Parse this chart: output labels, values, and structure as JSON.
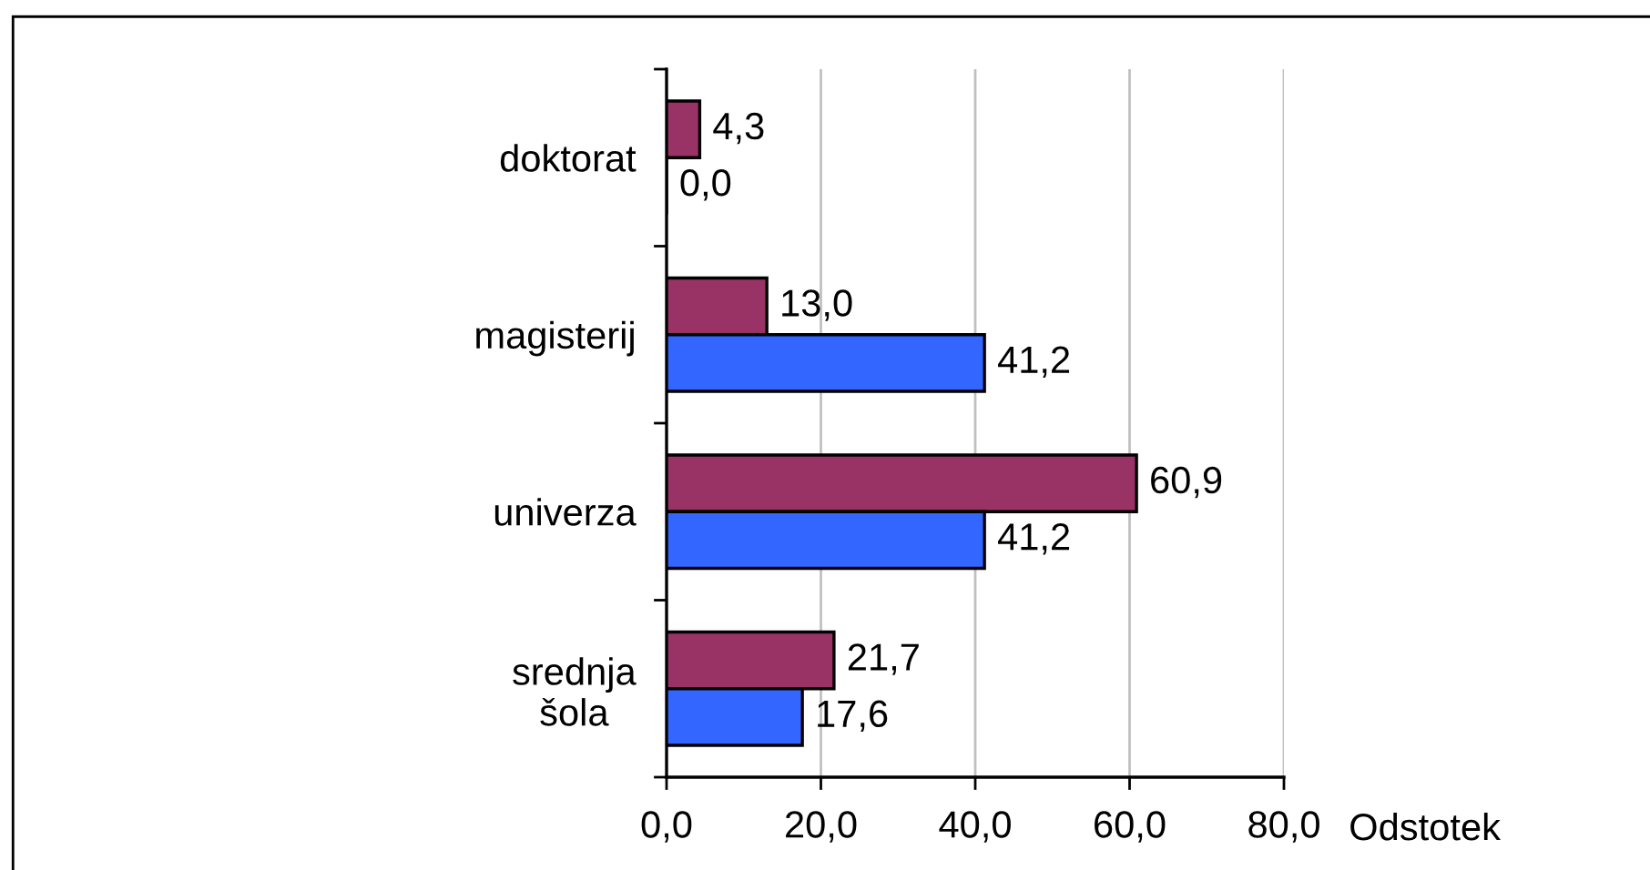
{
  "chart_data": {
    "type": "bar",
    "orientation": "horizontal",
    "categories": [
      "doktorat",
      "magisterij",
      "univerza",
      "srednja\nšola"
    ],
    "series": [
      {
        "color": "#993366",
        "values": [
          4.3,
          13.0,
          60.9,
          21.7
        ],
        "value_labels": [
          "4,3",
          "13,0",
          "60,9",
          "21,7"
        ]
      },
      {
        "color": "#3366ff",
        "values": [
          0.0,
          41.2,
          41.2,
          17.6
        ],
        "value_labels": [
          "0,0",
          "41,2",
          "41,2",
          "17,6"
        ]
      }
    ],
    "xlabel": "Odstotek",
    "xlim": [
      0,
      80
    ],
    "xticks": [
      {
        "value": 0,
        "label": "0,0"
      },
      {
        "value": 20,
        "label": "20,0"
      },
      {
        "value": 40,
        "label": "40,0"
      },
      {
        "value": 60,
        "label": "60,0"
      },
      {
        "value": 80,
        "label": "80,0"
      }
    ],
    "grid": "x"
  }
}
